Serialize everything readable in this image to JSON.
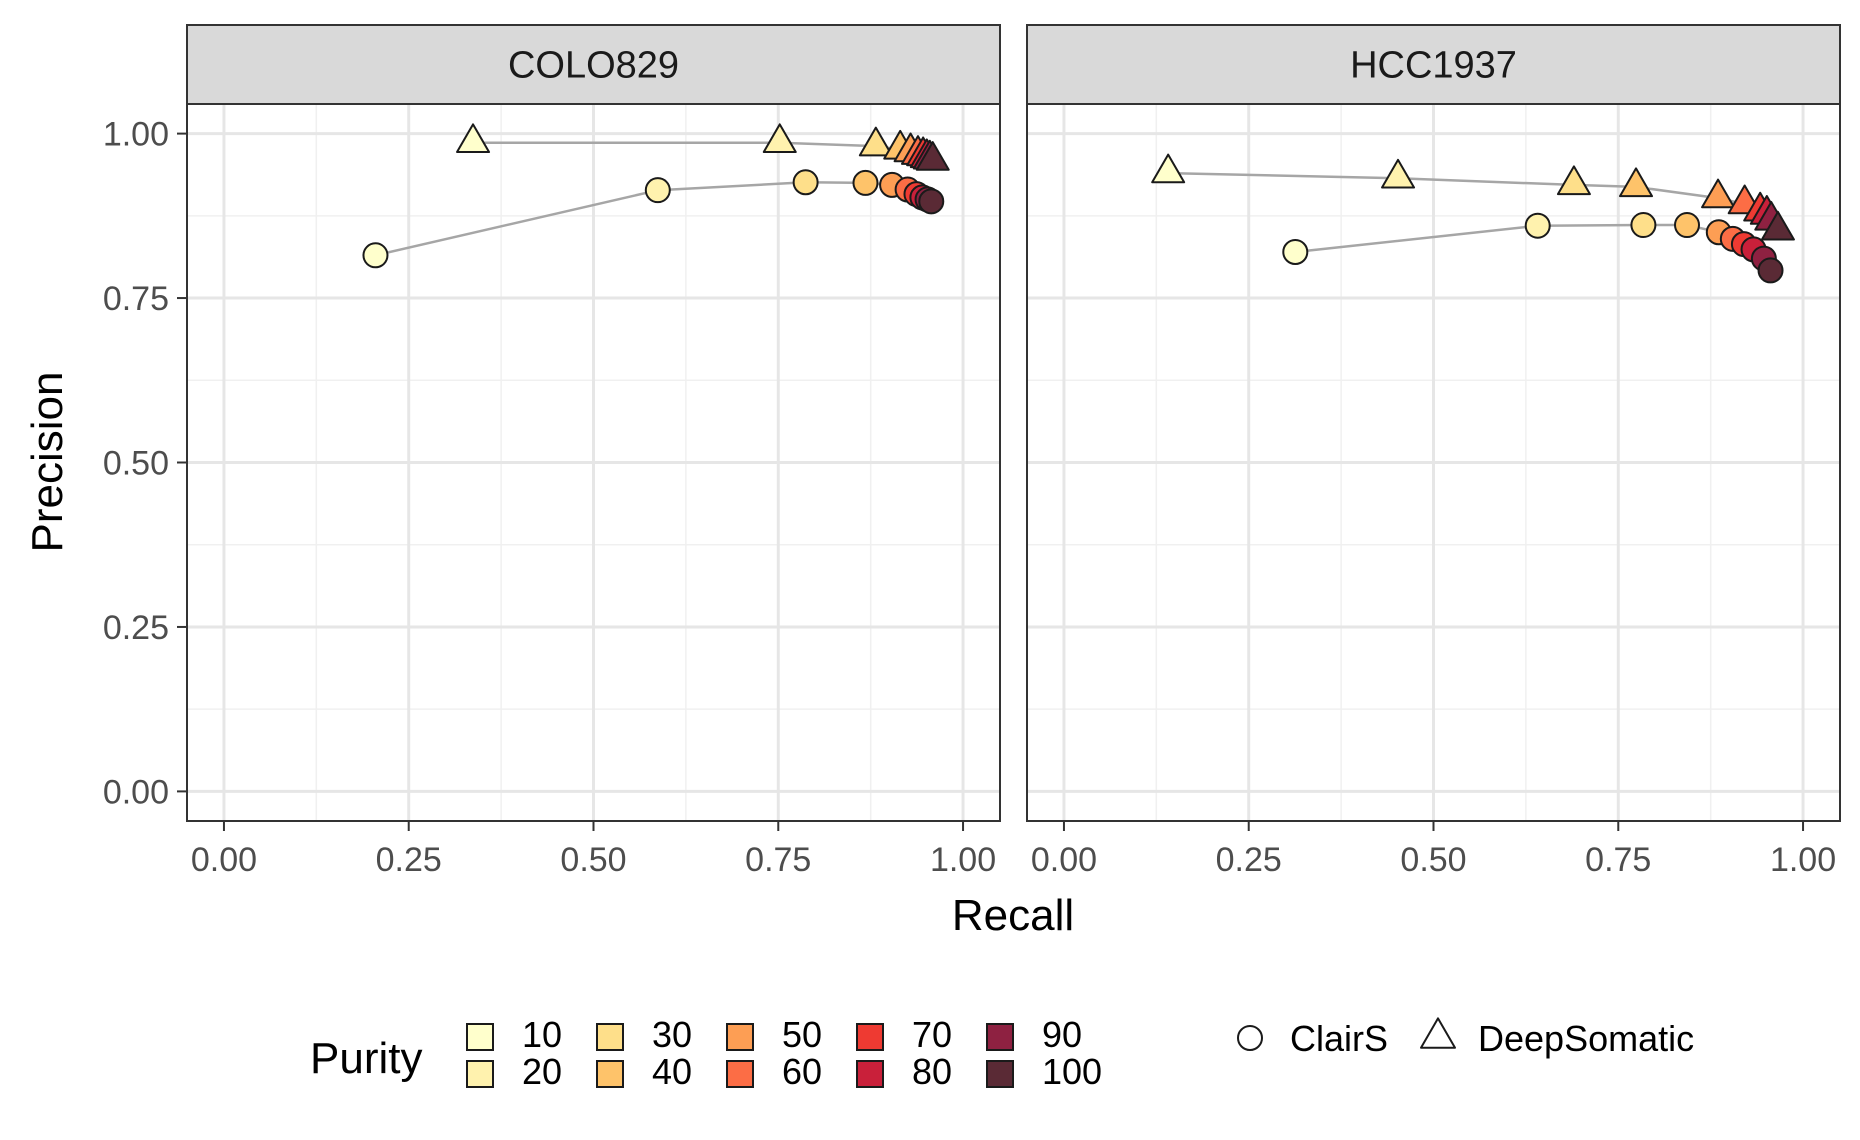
{
  "chart_data": {
    "type": "scatter",
    "xlabel": "Recall",
    "ylabel": "Precision",
    "xlim": [
      -0.05,
      1.05
    ],
    "ylim": [
      -0.045,
      1.045
    ],
    "x_ticks": [
      0,
      0.25,
      0.5,
      0.75,
      1
    ],
    "y_ticks": [
      0,
      0.25,
      0.5,
      0.75,
      1
    ],
    "x_tick_labels": [
      "0.00",
      "0.25",
      "0.50",
      "0.75",
      "1.00"
    ],
    "y_tick_labels": [
      "0.00",
      "0.25",
      "0.50",
      "0.75",
      "1.00"
    ],
    "grid": true,
    "legend_position": "bottom",
    "purity_legend": {
      "title": "Purity",
      "levels": [
        {
          "label": "10",
          "color": "#FFFFCC"
        },
        {
          "label": "20",
          "color": "#FFF2AE"
        },
        {
          "label": "30",
          "color": "#FEDF8A"
        },
        {
          "label": "40",
          "color": "#FEC36A"
        },
        {
          "label": "50",
          "color": "#FD9E54"
        },
        {
          "label": "60",
          "color": "#FC6D45"
        },
        {
          "label": "70",
          "color": "#EE3A32"
        },
        {
          "label": "80",
          "color": "#C9203A"
        },
        {
          "label": "90",
          "color": "#8E2141"
        },
        {
          "label": "100",
          "color": "#5A2A35"
        }
      ]
    },
    "shape_legend": [
      {
        "label": "ClairS",
        "shape": "circle"
      },
      {
        "label": "DeepSomatic",
        "shape": "triangle"
      }
    ],
    "panels": [
      {
        "title": "COLO829",
        "series": [
          {
            "name": "ClairS",
            "shape": "circle",
            "points": [
              {
                "purity": 10,
                "x": 0.205,
                "y": 0.815
              },
              {
                "purity": 20,
                "x": 0.587,
                "y": 0.914
              },
              {
                "purity": 30,
                "x": 0.787,
                "y": 0.926
              },
              {
                "purity": 40,
                "x": 0.868,
                "y": 0.925
              },
              {
                "purity": 50,
                "x": 0.904,
                "y": 0.922
              },
              {
                "purity": 60,
                "x": 0.925,
                "y": 0.915
              },
              {
                "purity": 70,
                "x": 0.937,
                "y": 0.908
              },
              {
                "purity": 80,
                "x": 0.945,
                "y": 0.903
              },
              {
                "purity": 90,
                "x": 0.952,
                "y": 0.9
              },
              {
                "purity": 100,
                "x": 0.957,
                "y": 0.897
              }
            ]
          },
          {
            "name": "DeepSomatic",
            "shape": "triangle",
            "points": [
              {
                "purity": 10,
                "x": 0.337,
                "y": 0.986
              },
              {
                "purity": 20,
                "x": 0.752,
                "y": 0.986
              },
              {
                "purity": 30,
                "x": 0.882,
                "y": 0.981
              },
              {
                "purity": 40,
                "x": 0.915,
                "y": 0.976
              },
              {
                "purity": 50,
                "x": 0.929,
                "y": 0.972
              },
              {
                "purity": 60,
                "x": 0.939,
                "y": 0.968
              },
              {
                "purity": 70,
                "x": 0.946,
                "y": 0.966
              },
              {
                "purity": 80,
                "x": 0.951,
                "y": 0.963
              },
              {
                "purity": 90,
                "x": 0.955,
                "y": 0.961
              },
              {
                "purity": 100,
                "x": 0.959,
                "y": 0.959
              }
            ]
          }
        ]
      },
      {
        "title": "HCC1937",
        "series": [
          {
            "name": "ClairS",
            "shape": "circle",
            "points": [
              {
                "purity": 10,
                "x": 0.313,
                "y": 0.82
              },
              {
                "purity": 20,
                "x": 0.641,
                "y": 0.86
              },
              {
                "purity": 30,
                "x": 0.784,
                "y": 0.861
              },
              {
                "purity": 40,
                "x": 0.843,
                "y": 0.861
              },
              {
                "purity": 50,
                "x": 0.886,
                "y": 0.85
              },
              {
                "purity": 60,
                "x": 0.905,
                "y": 0.84
              },
              {
                "purity": 70,
                "x": 0.92,
                "y": 0.832
              },
              {
                "purity": 80,
                "x": 0.933,
                "y": 0.824
              },
              {
                "purity": 90,
                "x": 0.947,
                "y": 0.81
              },
              {
                "purity": 100,
                "x": 0.956,
                "y": 0.792
              }
            ]
          },
          {
            "name": "DeepSomatic",
            "shape": "triangle",
            "points": [
              {
                "purity": 10,
                "x": 0.141,
                "y": 0.94
              },
              {
                "purity": 20,
                "x": 0.452,
                "y": 0.932
              },
              {
                "purity": 30,
                "x": 0.69,
                "y": 0.922
              },
              {
                "purity": 40,
                "x": 0.774,
                "y": 0.919
              },
              {
                "purity": 50,
                "x": 0.885,
                "y": 0.902
              },
              {
                "purity": 60,
                "x": 0.921,
                "y": 0.893
              },
              {
                "purity": 70,
                "x": 0.942,
                "y": 0.882
              },
              {
                "purity": 80,
                "x": 0.951,
                "y": 0.877
              },
              {
                "purity": 90,
                "x": 0.957,
                "y": 0.868
              },
              {
                "purity": 100,
                "x": 0.966,
                "y": 0.853
              }
            ]
          }
        ]
      }
    ]
  }
}
